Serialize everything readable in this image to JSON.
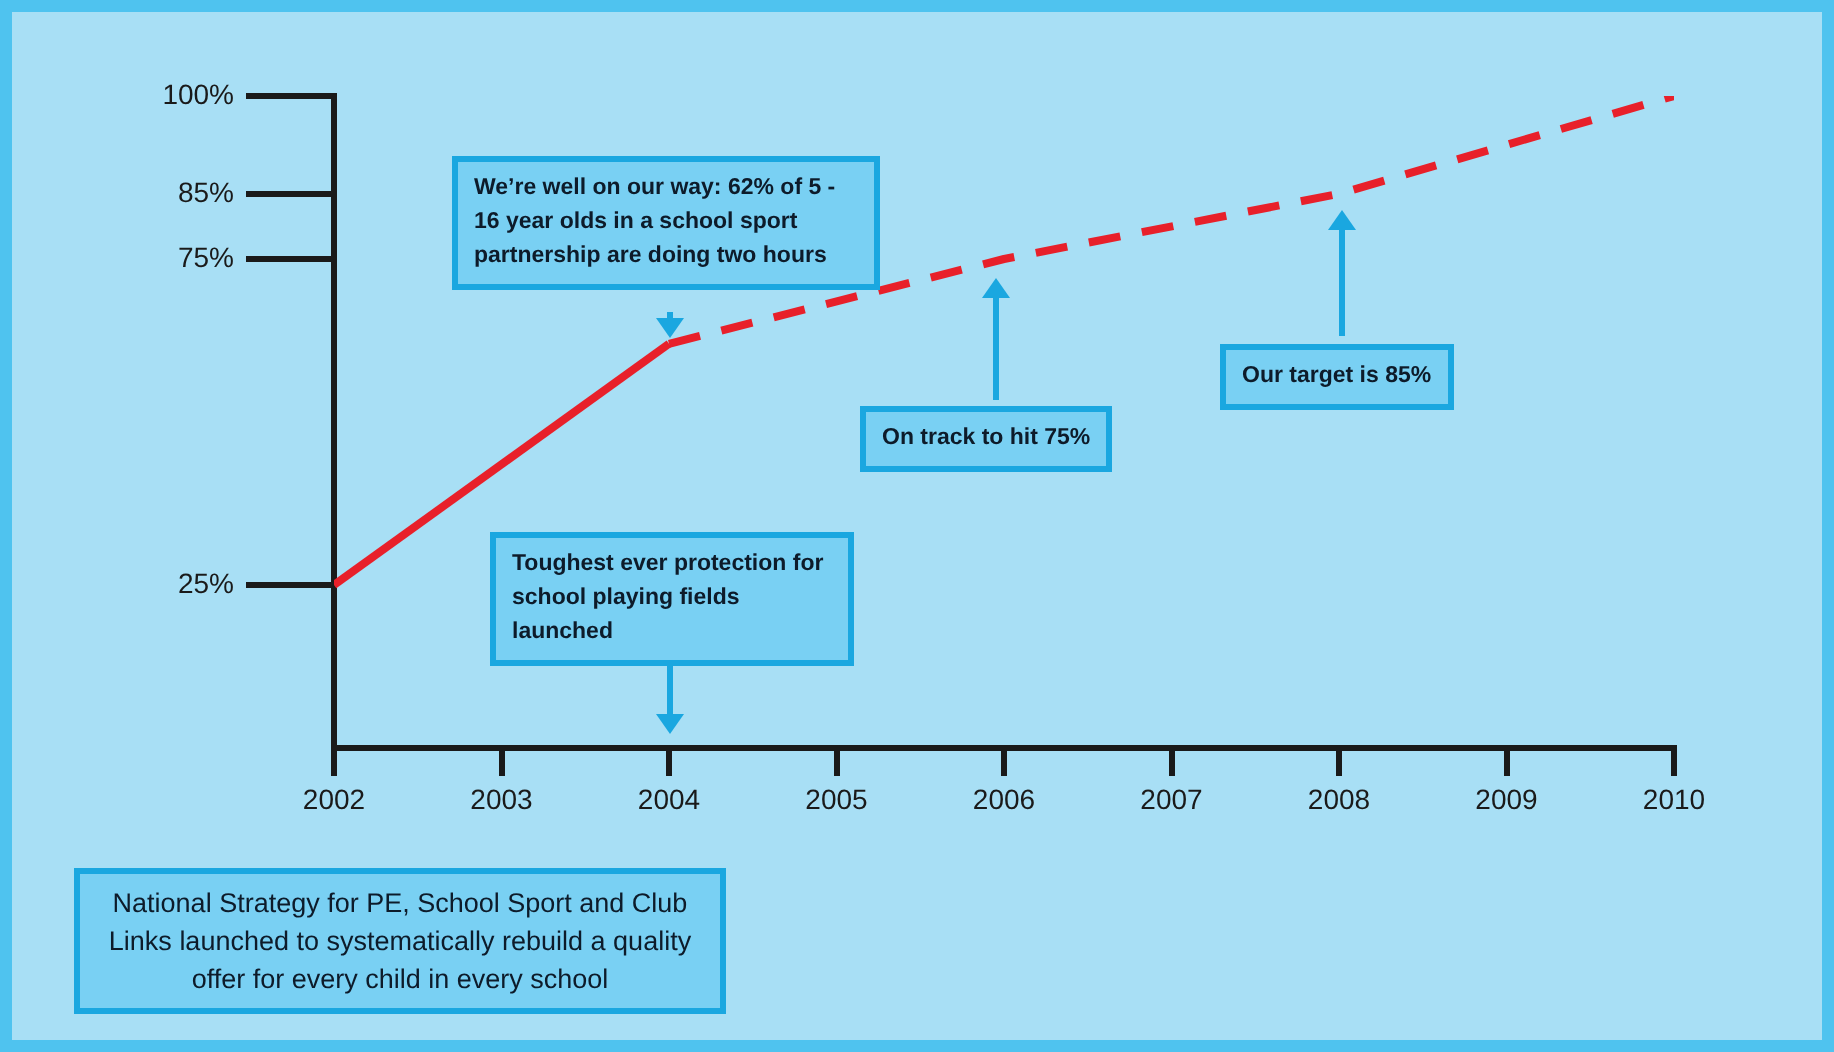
{
  "chart_data": {
    "type": "line",
    "xlim": [
      2002,
      2010
    ],
    "xticks": [
      2002,
      2003,
      2004,
      2005,
      2006,
      2007,
      2008,
      2009,
      2010
    ],
    "ylim": [
      0,
      100
    ],
    "yticks": [
      {
        "value": 25,
        "label": "25%"
      },
      {
        "value": 75,
        "label": "75%"
      },
      {
        "value": 85,
        "label": "85%"
      },
      {
        "value": 100,
        "label": "100%"
      }
    ],
    "grid": false,
    "marker": "none",
    "series": [
      {
        "x": [
          2002,
          2004
        ],
        "values": [
          25,
          62
        ],
        "color": "#e8202a",
        "line_style": "solid"
      },
      {
        "x": [
          2004,
          2006,
          2008,
          2010
        ],
        "values": [
          62,
          75,
          85,
          100
        ],
        "color": "#e8202a",
        "line_style": "dashed"
      }
    ],
    "annotations": [
      "We’re well on our way: 62% of 5 - 16 year olds in a school sport partnership are doing two hours",
      "On track to hit 75%",
      "Our target is 85%",
      "Toughest ever protection for school playing fields launched",
      "National Strategy for PE, School Sport and Club Links launched to systematically rebuild a quality offer for every child in every school"
    ]
  }
}
